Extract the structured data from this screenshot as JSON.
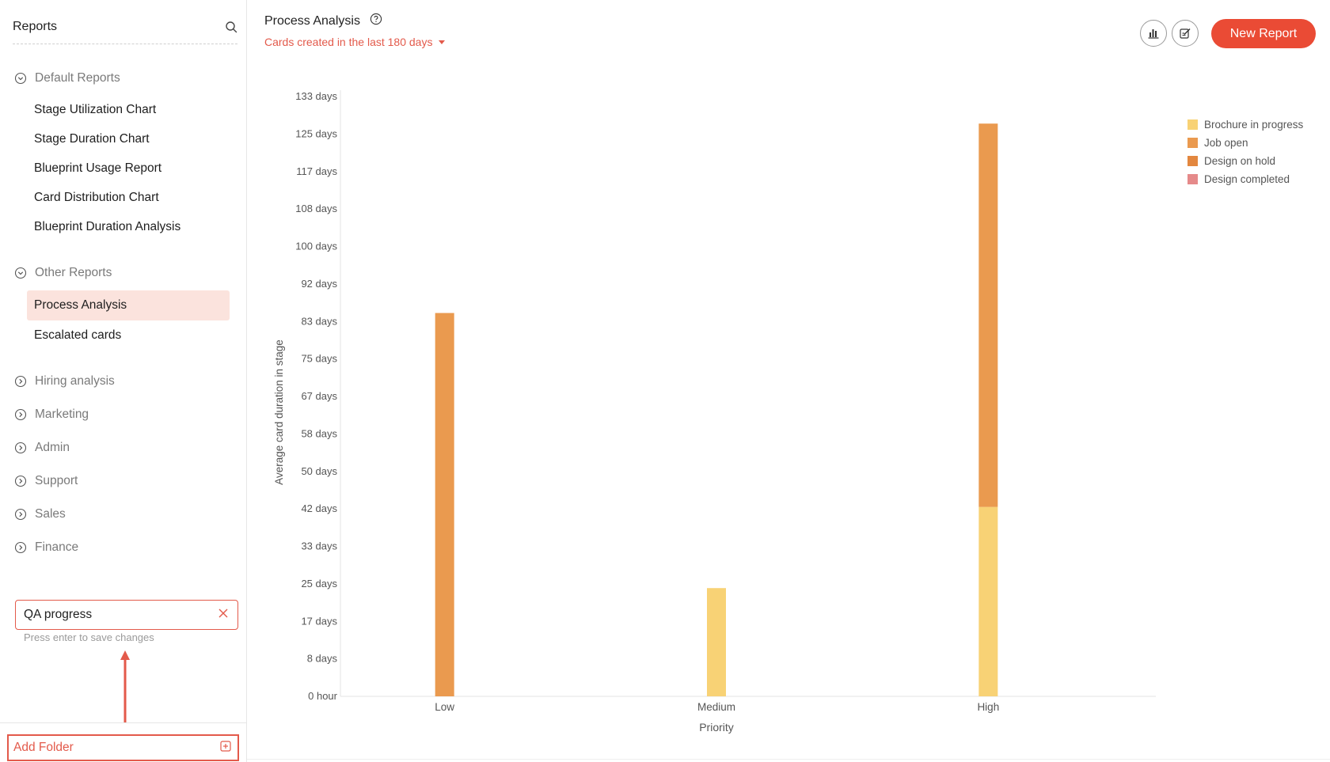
{
  "sidebar": {
    "title": "Reports",
    "groups": [
      {
        "label": "Default Reports",
        "items": [
          {
            "label": "Stage Utilization Chart"
          },
          {
            "label": "Stage Duration Chart"
          },
          {
            "label": "Blueprint Usage Report"
          },
          {
            "label": "Card Distribution Chart"
          },
          {
            "label": "Blueprint Duration Analysis"
          }
        ]
      },
      {
        "label": "Other Reports",
        "items": [
          {
            "label": "Process Analysis",
            "selected": true
          },
          {
            "label": "Escalated cards"
          }
        ]
      },
      {
        "label": "Hiring analysis"
      },
      {
        "label": "Marketing"
      },
      {
        "label": "Admin"
      },
      {
        "label": "Support"
      },
      {
        "label": "Sales"
      },
      {
        "label": "Finance"
      }
    ],
    "new_folder": {
      "value": "QA progress",
      "hint": "Press enter to save changes"
    },
    "add_folder_label": "Add Folder"
  },
  "header": {
    "title": "Process Analysis",
    "filter_label": "Cards created in the last 180 days",
    "new_report_label": "New Report"
  },
  "colors": {
    "accent": "#ea4b35",
    "selected_bg": "#fbe3dd",
    "series": [
      "#f8d275",
      "#ea9a4f",
      "#e3873f",
      "#e58a8a"
    ]
  },
  "icons": [
    "search-icon",
    "chevron-icon",
    "help-icon",
    "bar-chart-icon",
    "edit-icon",
    "close-icon",
    "add-folder-icon"
  ],
  "chart_data": {
    "type": "bar",
    "stacked": true,
    "categories": [
      "Low",
      "Medium",
      "High"
    ],
    "xlabel": "Priority",
    "ylabel": "Average card duration in stage",
    "ylim": [
      0,
      133
    ],
    "yticks": [
      "0 hour",
      "8 days",
      "17 days",
      "25 days",
      "33 days",
      "42 days",
      "50 days",
      "58 days",
      "67 days",
      "75 days",
      "83 days",
      "92 days",
      "100 days",
      "108 days",
      "117 days",
      "125 days",
      "133 days"
    ],
    "series": [
      {
        "name": "Brochure in progress",
        "values": [
          0,
          24,
          42
        ]
      },
      {
        "name": "Job open",
        "values": [
          85,
          0,
          85
        ]
      },
      {
        "name": "Design on hold",
        "values": [
          0,
          0,
          0
        ]
      },
      {
        "name": "Design completed",
        "values": [
          0,
          0,
          0
        ]
      }
    ],
    "legend": "top-right",
    "grid": false
  }
}
